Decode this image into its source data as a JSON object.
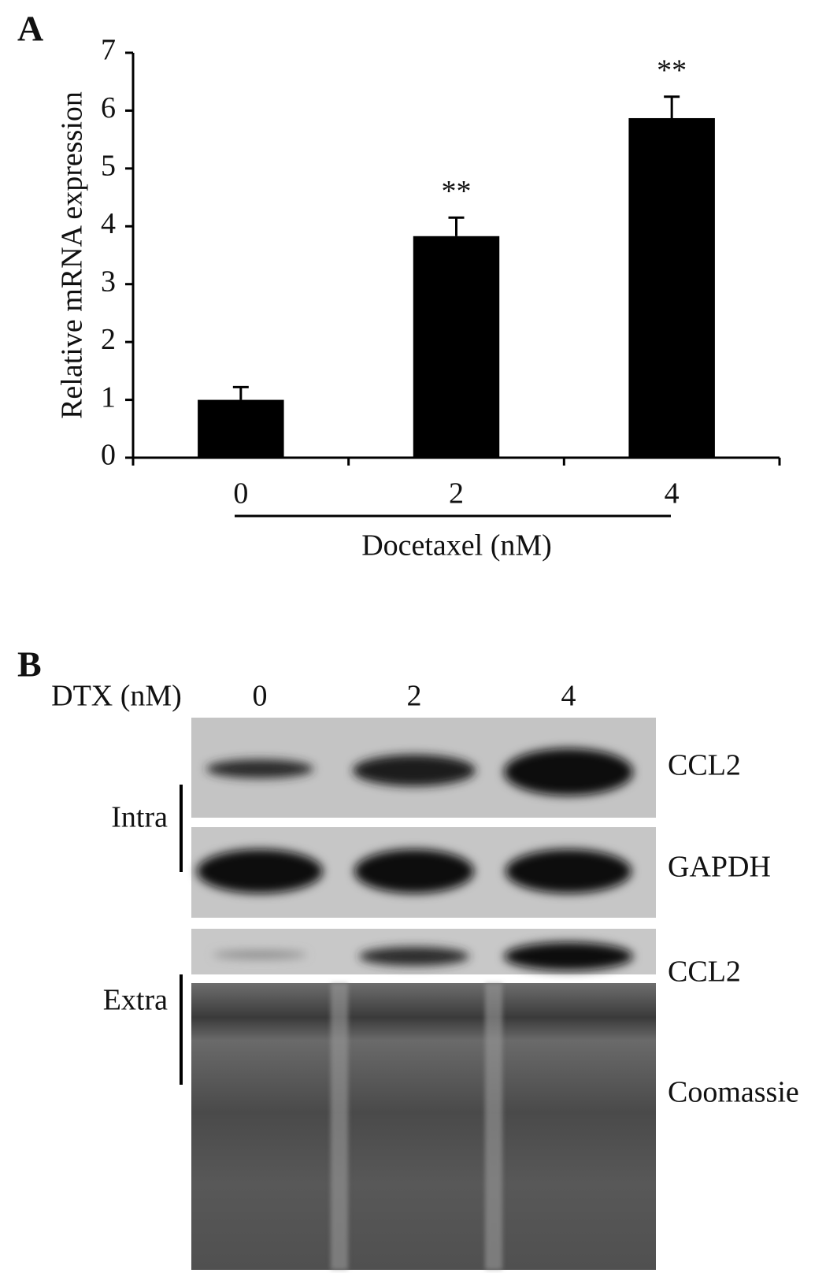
{
  "chart_data": {
    "type": "bar",
    "panel_label": "A",
    "categories": [
      "0",
      "2",
      "4"
    ],
    "values": [
      1.0,
      3.83,
      5.87
    ],
    "errors": [
      0.22,
      0.32,
      0.37
    ],
    "value_annotations": [
      null,
      "**",
      "**"
    ],
    "color": "#000000",
    "ylabel": "Relative mRNA expression",
    "xlabel": "Docetaxel (nM)",
    "ylim": [
      0,
      7
    ],
    "yticks": [
      0,
      1,
      2,
      3,
      4,
      5,
      6,
      7
    ],
    "grid": false
  },
  "blot": {
    "panel_label": "B",
    "header_label": "DTX (nM)",
    "lanes": [
      "0",
      "2",
      "4"
    ],
    "rows": [
      "CCL2",
      "GAPDH",
      "CCL2",
      "Coomassie"
    ],
    "groups": [
      "Intra",
      "Extra"
    ]
  }
}
